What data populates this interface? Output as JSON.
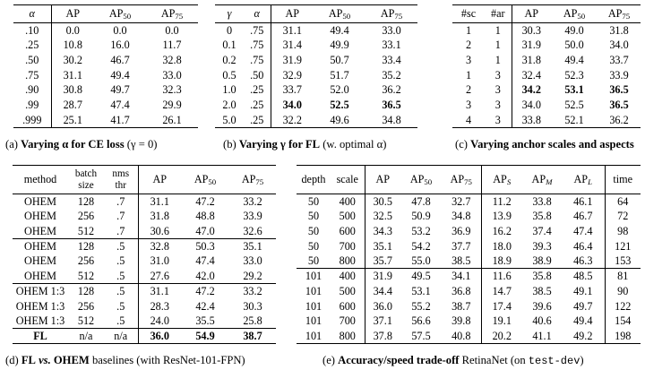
{
  "table_a": {
    "headers": [
      "α",
      "AP",
      "AP50",
      "AP75"
    ],
    "rows": [
      [
        ".10",
        "0.0",
        "0.0",
        "0.0"
      ],
      [
        ".25",
        "10.8",
        "16.0",
        "11.7"
      ],
      [
        ".50",
        "30.2",
        "46.7",
        "32.8"
      ],
      [
        ".75",
        "31.1",
        "49.4",
        "33.0"
      ],
      [
        ".90",
        "30.8",
        "49.7",
        "32.3"
      ],
      [
        ".99",
        "28.7",
        "47.4",
        "29.9"
      ],
      [
        ".999",
        "25.1",
        "41.7",
        "26.1"
      ]
    ],
    "caption": {
      "label": "(a)",
      "bold": "Varying α for CE loss",
      "rest": "(γ = 0)"
    }
  },
  "table_b": {
    "headers": [
      "γ",
      "α",
      "AP",
      "AP50",
      "AP75"
    ],
    "rows": [
      [
        "0",
        ".75",
        "31.1",
        "49.4",
        "33.0"
      ],
      [
        "0.1",
        ".75",
        "31.4",
        "49.9",
        "33.1"
      ],
      [
        "0.2",
        ".75",
        "31.9",
        "50.7",
        "33.4"
      ],
      [
        "0.5",
        ".50",
        "32.9",
        "51.7",
        "35.2"
      ],
      [
        "1.0",
        ".25",
        "33.7",
        "52.0",
        "36.2"
      ],
      [
        "2.0",
        ".25",
        "34.0",
        "52.5",
        "36.5"
      ],
      [
        "5.0",
        ".25",
        "32.2",
        "49.6",
        "34.8"
      ]
    ],
    "caption": {
      "label": "(b)",
      "bold": "Varying γ for FL",
      "rest": "(w. optimal α)"
    }
  },
  "table_c": {
    "headers": [
      "#sc",
      "#ar",
      "AP",
      "AP50",
      "AP75"
    ],
    "rows": [
      [
        "1",
        "1",
        "30.3",
        "49.0",
        "31.8"
      ],
      [
        "2",
        "1",
        "31.9",
        "50.0",
        "34.0"
      ],
      [
        "3",
        "1",
        "31.8",
        "49.4",
        "33.7"
      ],
      [
        "1",
        "3",
        "32.4",
        "52.3",
        "33.9"
      ],
      [
        "2",
        "3",
        "34.2",
        "53.1",
        "36.5"
      ],
      [
        "3",
        "3",
        "34.0",
        "52.5",
        "36.5"
      ],
      [
        "4",
        "3",
        "33.8",
        "52.1",
        "36.2"
      ]
    ],
    "caption": {
      "label": "(c)",
      "bold": "Varying anchor scales and aspects"
    }
  },
  "table_d": {
    "headers": [
      "method",
      "batch size",
      "nms thr",
      "AP",
      "AP50",
      "AP75"
    ],
    "header_lines": {
      "batch1": "batch",
      "batch2": "size",
      "nms1": "nms",
      "nms2": "thr"
    },
    "rows": [
      [
        "OHEM",
        "128",
        ".7",
        "31.1",
        "47.2",
        "33.2"
      ],
      [
        "OHEM",
        "256",
        ".7",
        "31.8",
        "48.8",
        "33.9"
      ],
      [
        "OHEM",
        "512",
        ".7",
        "30.6",
        "47.0",
        "32.6"
      ],
      [
        "OHEM",
        "128",
        ".5",
        "32.8",
        "50.3",
        "35.1"
      ],
      [
        "OHEM",
        "256",
        ".5",
        "31.0",
        "47.4",
        "33.0"
      ],
      [
        "OHEM",
        "512",
        ".5",
        "27.6",
        "42.0",
        "29.2"
      ],
      [
        "OHEM 1:3",
        "128",
        ".5",
        "31.1",
        "47.2",
        "33.2"
      ],
      [
        "OHEM 1:3",
        "256",
        ".5",
        "28.3",
        "42.4",
        "30.3"
      ],
      [
        "OHEM 1:3",
        "512",
        ".5",
        "24.0",
        "35.5",
        "25.8"
      ],
      [
        "FL",
        "n/a",
        "n/a",
        "36.0",
        "54.9",
        "38.7"
      ]
    ],
    "caption": {
      "label": "(d)",
      "bold1": "FL",
      "vs": "vs.",
      "bold2": "OHEM",
      "rest": "baselines (with ResNet-101-FPN)"
    }
  },
  "table_e": {
    "headers": [
      "depth",
      "scale",
      "AP",
      "AP50",
      "AP75",
      "APS",
      "APM",
      "APL",
      "time"
    ],
    "rows": [
      [
        "50",
        "400",
        "30.5",
        "47.8",
        "32.7",
        "11.2",
        "33.8",
        "46.1",
        "64"
      ],
      [
        "50",
        "500",
        "32.5",
        "50.9",
        "34.8",
        "13.9",
        "35.8",
        "46.7",
        "72"
      ],
      [
        "50",
        "600",
        "34.3",
        "53.2",
        "36.9",
        "16.2",
        "37.4",
        "47.4",
        "98"
      ],
      [
        "50",
        "700",
        "35.1",
        "54.2",
        "37.7",
        "18.0",
        "39.3",
        "46.4",
        "121"
      ],
      [
        "50",
        "800",
        "35.7",
        "55.0",
        "38.5",
        "18.9",
        "38.9",
        "46.3",
        "153"
      ],
      [
        "101",
        "400",
        "31.9",
        "49.5",
        "34.1",
        "11.6",
        "35.8",
        "48.5",
        "81"
      ],
      [
        "101",
        "500",
        "34.4",
        "53.1",
        "36.8",
        "14.7",
        "38.5",
        "49.1",
        "90"
      ],
      [
        "101",
        "600",
        "36.0",
        "55.2",
        "38.7",
        "17.4",
        "39.6",
        "49.7",
        "122"
      ],
      [
        "101",
        "700",
        "37.1",
        "56.6",
        "39.8",
        "19.1",
        "40.6",
        "49.4",
        "154"
      ],
      [
        "101",
        "800",
        "37.8",
        "57.5",
        "40.8",
        "20.2",
        "41.1",
        "49.2",
        "198"
      ]
    ],
    "caption": {
      "label": "(e)",
      "bold": "Accuracy/speed trade-off",
      "rest": "RetinaNet (on",
      "code": "test-dev",
      "close": ")"
    }
  }
}
